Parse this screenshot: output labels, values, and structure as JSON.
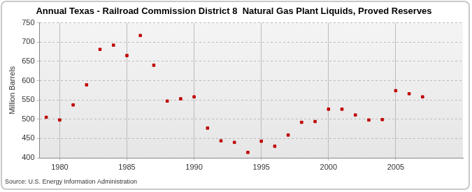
{
  "chart_data": {
    "type": "scatter",
    "title": "Annual Texas - Railroad Commission District 8  Natural Gas Plant Liquids, Proved Reserves",
    "y_label": "Million Barrels",
    "source": "Source: U.S. Energy Information Administration",
    "x": [
      1979,
      1980,
      1981,
      1982,
      1983,
      1984,
      1985,
      1986,
      1987,
      1988,
      1989,
      1990,
      1991,
      1992,
      1993,
      1994,
      1995,
      1996,
      1997,
      1998,
      1999,
      2000,
      2001,
      2002,
      2003,
      2004,
      2005,
      2006,
      2007
    ],
    "values": [
      505,
      498,
      537,
      589,
      681,
      692,
      665,
      717,
      640,
      547,
      553,
      558,
      477,
      444,
      440,
      414,
      443,
      430,
      459,
      492,
      494,
      526,
      526,
      511,
      498,
      499,
      574,
      566,
      558
    ],
    "color": "#c00000",
    "marker": "square",
    "xlim": [
      1978.5,
      2010
    ],
    "xticks": [
      1980,
      1985,
      1990,
      1995,
      2000,
      2005
    ],
    "ylim": [
      400,
      750
    ],
    "yticks": [
      400,
      450,
      500,
      550,
      600,
      650,
      700,
      750
    ],
    "grid": true
  }
}
